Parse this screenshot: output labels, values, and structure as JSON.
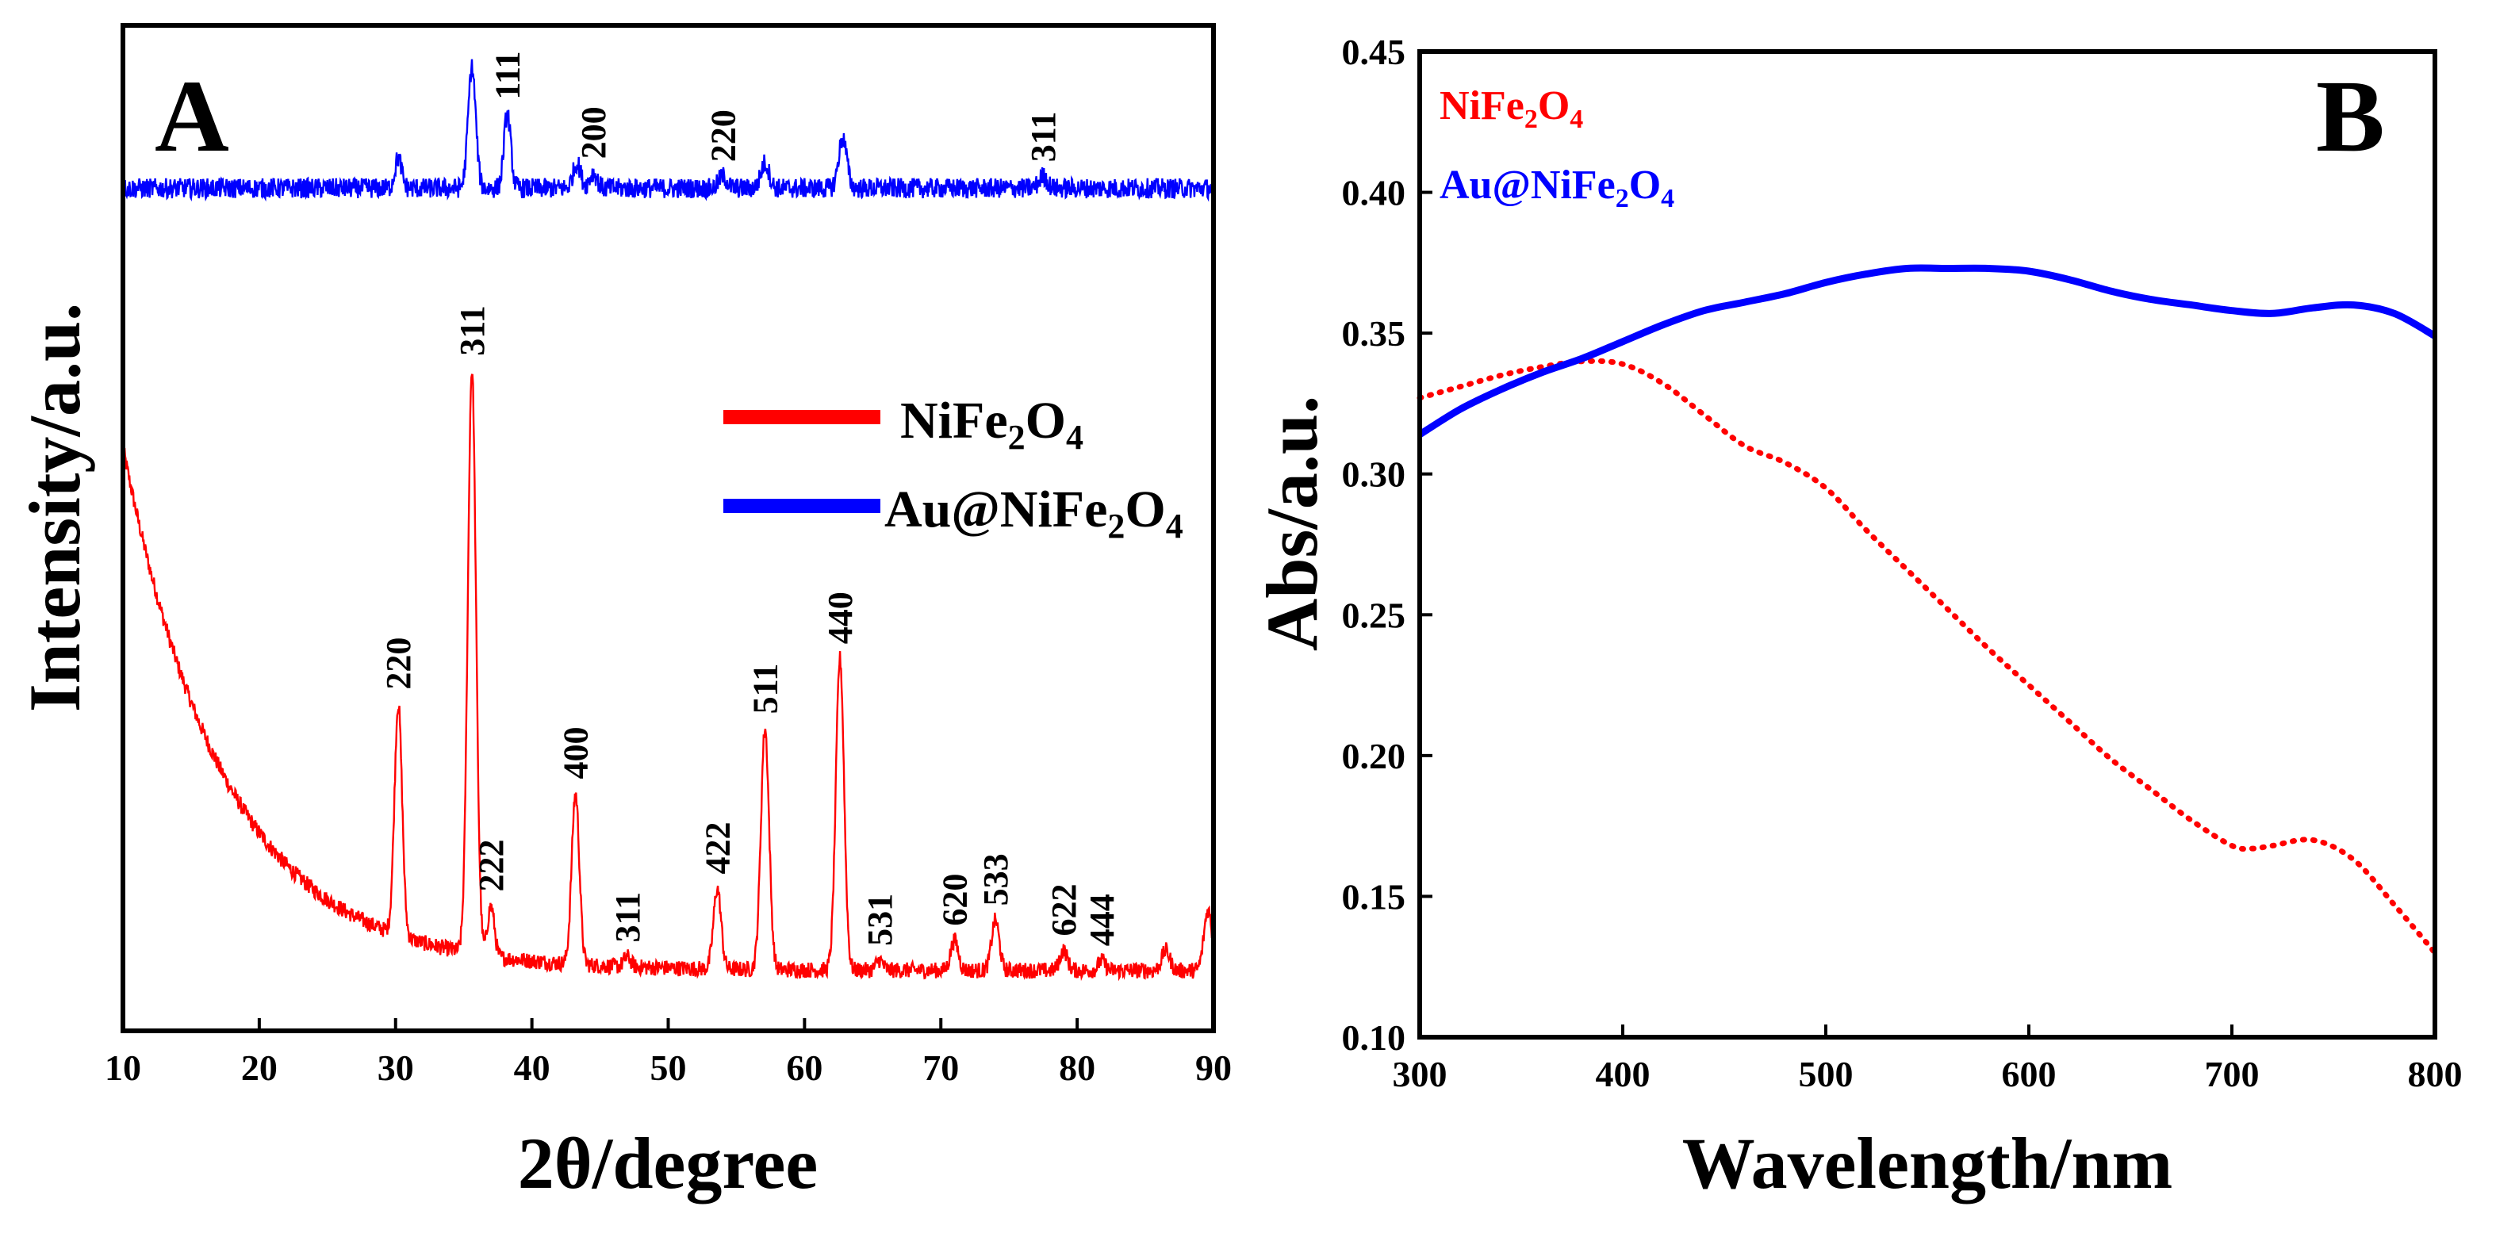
{
  "chart_data": [
    {
      "panel": "A",
      "type": "line",
      "title": "",
      "panel_label": "A",
      "xlabel": "2θ/degree",
      "ylabel": "Intensity/a.u.",
      "xlim": [
        10,
        90
      ],
      "xticks": [
        "10",
        "20",
        "30",
        "40",
        "50",
        "60",
        "70",
        "80",
        "90"
      ],
      "ylim": [
        0,
        1
      ],
      "yticks_shown": false,
      "legend": {
        "placement": "center-right",
        "entries": [
          {
            "label_main": "NiFe",
            "sub1": "2",
            "mid": "O",
            "sub2": "4",
            "color": "#ff0000"
          },
          {
            "label_main": "Au@NiFe",
            "sub1": "2",
            "mid": "O",
            "sub2": "4",
            "color": "#0000ff"
          }
        ]
      },
      "series": [
        {
          "name": "NiFe2O4",
          "color": "#ff0000",
          "baseline": {
            "start": 0.58,
            "end": 0.065,
            "decay": 7.5,
            "floor": 0.06
          },
          "noise": 0.008,
          "peaks": [
            {
              "x": 30.2,
              "height": 0.23,
              "width": 0.28,
              "label": "220"
            },
            {
              "x": 35.6,
              "height": 0.58,
              "width": 0.3,
              "label": "311"
            },
            {
              "x": 37.0,
              "height": 0.05,
              "width": 0.25,
              "label": "222"
            },
            {
              "x": 43.2,
              "height": 0.17,
              "width": 0.28,
              "label": "400"
            },
            {
              "x": 47.0,
              "height": 0.01,
              "width": 0.25,
              "label": "311"
            },
            {
              "x": 53.6,
              "height": 0.08,
              "width": 0.28,
              "label": "422"
            },
            {
              "x": 57.1,
              "height": 0.24,
              "width": 0.3,
              "label": "511"
            },
            {
              "x": 62.6,
              "height": 0.31,
              "width": 0.3,
              "label": "440"
            },
            {
              "x": 65.5,
              "height": 0.01,
              "width": 0.25,
              "label": "531"
            },
            {
              "x": 71.0,
              "height": 0.03,
              "width": 0.28,
              "label": "620"
            },
            {
              "x": 74.0,
              "height": 0.05,
              "width": 0.28,
              "label": "533"
            },
            {
              "x": 79.0,
              "height": 0.02,
              "width": 0.28,
              "label": "622"
            },
            {
              "x": 81.8,
              "height": 0.01,
              "width": 0.25,
              "label": "444"
            },
            {
              "x": 86.5,
              "height": 0.02,
              "width": 0.3,
              "label": ""
            },
            {
              "x": 89.6,
              "height": 0.06,
              "width": 0.3,
              "label": ""
            }
          ]
        },
        {
          "name": "Au@NiFe2O4",
          "color": "#0000ff",
          "baseline": {
            "start": 0.838,
            "end": 0.838,
            "decay": 0,
            "floor": 0.838
          },
          "noise": 0.01,
          "peaks": [
            {
              "x": 30.2,
              "height": 0.03,
              "width": 0.25,
              "label": ""
            },
            {
              "x": 35.6,
              "height": 0.12,
              "width": 0.28,
              "label": ""
            },
            {
              "x": 38.2,
              "height": 0.074,
              "width": 0.25,
              "label": "111"
            },
            {
              "x": 43.3,
              "height": 0.025,
              "width": 0.28,
              "label": ""
            },
            {
              "x": 44.5,
              "height": 0.015,
              "width": 0.28,
              "label": "200"
            },
            {
              "x": 54.0,
              "height": 0.012,
              "width": 0.3,
              "label": "220"
            },
            {
              "x": 57.1,
              "height": 0.025,
              "width": 0.3,
              "label": ""
            },
            {
              "x": 62.8,
              "height": 0.05,
              "width": 0.3,
              "label": ""
            },
            {
              "x": 77.5,
              "height": 0.012,
              "width": 0.3,
              "label": "311"
            }
          ]
        }
      ],
      "peak_labels": [
        {
          "series": "NiFe2O4",
          "x": 30.2,
          "label": "220"
        },
        {
          "series": "NiFe2O4",
          "x": 35.6,
          "label": "311"
        },
        {
          "series": "NiFe2O4",
          "x": 37.0,
          "label": "222"
        },
        {
          "series": "NiFe2O4",
          "x": 43.2,
          "label": "400"
        },
        {
          "series": "NiFe2O4",
          "x": 47.0,
          "label": "311"
        },
        {
          "series": "NiFe2O4",
          "x": 53.6,
          "label": "422"
        },
        {
          "series": "NiFe2O4",
          "x": 57.1,
          "label": "511"
        },
        {
          "series": "NiFe2O4",
          "x": 62.6,
          "label": "440"
        },
        {
          "series": "NiFe2O4",
          "x": 65.5,
          "label": "531"
        },
        {
          "series": "NiFe2O4",
          "x": 71.0,
          "label": "620"
        },
        {
          "series": "NiFe2O4",
          "x": 74.0,
          "label": "533"
        },
        {
          "series": "NiFe2O4",
          "x": 79.0,
          "label": "622"
        },
        {
          "series": "NiFe2O4",
          "x": 81.8,
          "label": "444"
        },
        {
          "series": "Au@NiFe2O4",
          "x": 38.2,
          "label": "111"
        },
        {
          "series": "Au@NiFe2O4",
          "x": 44.5,
          "label": "200"
        },
        {
          "series": "Au@NiFe2O4",
          "x": 54.0,
          "label": "220"
        },
        {
          "series": "Au@NiFe2O4",
          "x": 77.5,
          "label": "311"
        }
      ]
    },
    {
      "panel": "B",
      "type": "line",
      "title": "",
      "panel_label": "B",
      "xlabel": "Wavelength/nm",
      "ylabel": "Abs/a.u.",
      "xlim": [
        300,
        800
      ],
      "ylim": [
        0.1,
        0.45
      ],
      "xticks": [
        "300",
        "400",
        "500",
        "600",
        "700",
        "800"
      ],
      "yticks": [
        "0.10",
        "0.15",
        "0.20",
        "0.25",
        "0.30",
        "0.35",
        "0.40",
        "0.45"
      ],
      "legend": {
        "placement": "top-left",
        "entries": [
          {
            "label_main": "NiFe",
            "sub1": "2",
            "mid": "O",
            "sub2": "4",
            "color": "#ff0000"
          },
          {
            "label_main": "Au@NiFe",
            "sub1": "2",
            "mid": "O",
            "sub2": "4",
            "color": "#0000ff"
          }
        ]
      },
      "series": [
        {
          "name": "NiFe2O4",
          "color": "#ff0000",
          "style": "dotted",
          "x": [
            300,
            320,
            340,
            360,
            380,
            400,
            420,
            440,
            460,
            480,
            500,
            520,
            540,
            560,
            580,
            600,
            620,
            640,
            660,
            680,
            700,
            710,
            720,
            740,
            760,
            780,
            800
          ],
          "y": [
            0.327,
            0.331,
            0.335,
            0.338,
            0.34,
            0.339,
            0.332,
            0.321,
            0.31,
            0.304,
            0.295,
            0.28,
            0.266,
            0.252,
            0.238,
            0.225,
            0.212,
            0.199,
            0.188,
            0.177,
            0.168,
            0.167,
            0.168,
            0.17,
            0.163,
            0.147,
            0.13
          ]
        },
        {
          "name": "Au@NiFe2O4",
          "color": "#0000ff",
          "style": "solid",
          "x": [
            300,
            320,
            340,
            360,
            380,
            400,
            420,
            440,
            460,
            480,
            500,
            520,
            540,
            560,
            580,
            600,
            620,
            640,
            660,
            680,
            700,
            720,
            740,
            760,
            780,
            800
          ],
          "y": [
            0.314,
            0.323,
            0.33,
            0.336,
            0.341,
            0.347,
            0.353,
            0.358,
            0.361,
            0.364,
            0.368,
            0.371,
            0.373,
            0.373,
            0.373,
            0.372,
            0.369,
            0.365,
            0.362,
            0.36,
            0.358,
            0.357,
            0.359,
            0.36,
            0.357,
            0.349
          ]
        }
      ]
    }
  ]
}
